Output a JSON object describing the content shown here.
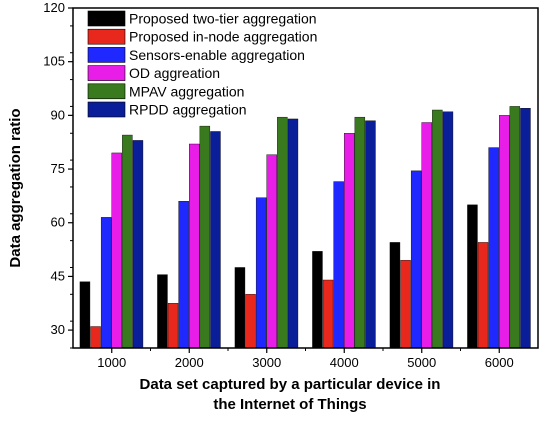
{
  "chart_data": {
    "type": "bar",
    "title": "",
    "ylabel": "Data aggregation ratio",
    "xlabel_lines": [
      "Data set captured by a particular device in",
      "the Internet of Things"
    ],
    "categories": [
      "1000",
      "2000",
      "3000",
      "4000",
      "5000",
      "6000"
    ],
    "ylim": [
      25,
      120
    ],
    "yticks": [
      "30",
      "45",
      "60",
      "75",
      "90",
      "105",
      "120"
    ],
    "ytick_values": [
      30,
      45,
      60,
      75,
      90,
      105,
      120
    ],
    "grid": false,
    "legend_position": "top-left",
    "series": [
      {
        "name": "Proposed two-tier aggregation",
        "color": "#000000",
        "values": [
          43.5,
          45.5,
          47.5,
          52,
          54.5,
          65
        ]
      },
      {
        "name": "Proposed in-node aggregation",
        "color": "#e8281c",
        "values": [
          31,
          37.5,
          40,
          44,
          49.5,
          54.5
        ]
      },
      {
        "name": "Sensors-enable aggregation",
        "color": "#1e28ff",
        "values": [
          61.5,
          66,
          67,
          71.5,
          74.5,
          81
        ]
      },
      {
        "name": "OD aggreation",
        "color": "#e81ee8",
        "values": [
          79.5,
          82,
          79,
          85,
          88,
          90
        ]
      },
      {
        "name": "MPAV aggregation",
        "color": "#3a7a1e",
        "values": [
          84.5,
          87,
          89.5,
          89.5,
          91.5,
          92.5
        ]
      },
      {
        "name": "RPDD aggregation",
        "color": "#0a1e9a",
        "values": [
          83,
          85.5,
          89,
          88.5,
          91,
          92
        ]
      }
    ]
  }
}
